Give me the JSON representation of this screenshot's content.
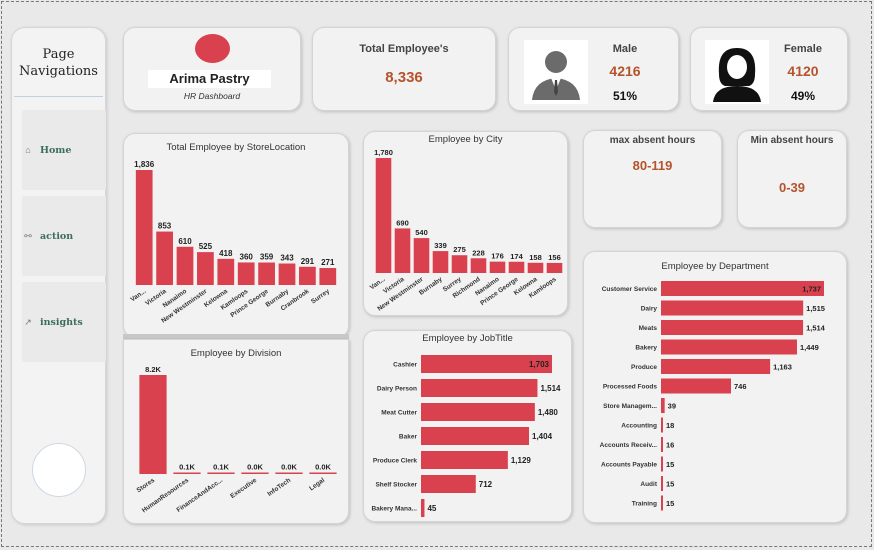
{
  "nav": {
    "title": "Page Navigations",
    "items": [
      {
        "label": "Home",
        "icon": "house-icon",
        "glyph": "⌂"
      },
      {
        "label": "action",
        "icon": "link-icon",
        "glyph": "⚯"
      },
      {
        "label": "insights",
        "icon": "chart-icon",
        "glyph": "↗"
      }
    ]
  },
  "brand": {
    "name": "Arima Pastry",
    "subtitle": "HR Dashboard",
    "logo_color": "#d9414e"
  },
  "kpis": {
    "total_label": "Total Employee's",
    "total_value": "8,336",
    "male_label": "Male",
    "male_value": "4216",
    "male_pct": "51%",
    "female_label": "Female",
    "female_value": "4120",
    "female_pct": "49%",
    "max_absent_label": "max absent hours",
    "max_absent_value": "80-119",
    "min_absent_label": "Min absent hours",
    "min_absent_value": "0-39"
  },
  "colors": {
    "bar": "#d9414e",
    "accent": "#b4542c"
  },
  "chart_data": [
    {
      "id": "store",
      "type": "bar",
      "title": "Total Employee by StoreLocation",
      "categories": [
        "Van...",
        "Victoria",
        "Nanaimo",
        "New Westminster",
        "Kelowna",
        "Kamloops",
        "Prince George",
        "Burnaby",
        "Cranbrook",
        "Surrey"
      ],
      "values": [
        1836,
        853,
        610,
        525,
        418,
        360,
        359,
        343,
        291,
        271
      ],
      "labels": [
        "1,836",
        "853",
        "610",
        "525",
        "418",
        "360",
        "359",
        "343",
        "291",
        "271"
      ]
    },
    {
      "id": "city",
      "type": "bar",
      "title": "Employee by City",
      "categories": [
        "Van...",
        "Victoria",
        "New Westminster",
        "Burnaby",
        "Surrey",
        "Richmond",
        "Nanaimo",
        "Prince George",
        "Kelowna",
        "Kamloops"
      ],
      "values": [
        1780,
        690,
        540,
        339,
        275,
        228,
        176,
        174,
        158,
        156
      ],
      "labels": [
        "1,780",
        "690",
        "540",
        "339",
        "275",
        "228",
        "176",
        "174",
        "158",
        "156"
      ]
    },
    {
      "id": "division",
      "type": "bar",
      "title": "Employee by Division",
      "categories": [
        "Stores",
        "HumanResources",
        "FinanceAndAcc...",
        "Executive",
        "InfoTech",
        "Legal"
      ],
      "values": [
        8200,
        100,
        100,
        0,
        0,
        0
      ],
      "labels": [
        "8.2K",
        "0.1K",
        "0.1K",
        "0.0K",
        "0.0K",
        "0.0K"
      ]
    },
    {
      "id": "jobtitle",
      "type": "bar",
      "orientation": "horizontal",
      "title": "Employee by JobTitle",
      "categories": [
        "Cashier",
        "Dairy Person",
        "Meat Cutter",
        "Baker",
        "Produce Clerk",
        "Shelf Stocker",
        "Bakery Mana..."
      ],
      "values": [
        1703,
        1514,
        1480,
        1404,
        1129,
        712,
        45
      ],
      "labels": [
        "1,703",
        "1,514",
        "1,480",
        "1,404",
        "1,129",
        "712",
        "45"
      ]
    },
    {
      "id": "department",
      "type": "bar",
      "orientation": "horizontal",
      "title": "Employee by Department",
      "categories": [
        "Customer Service",
        "Dairy",
        "Meats",
        "Bakery",
        "Produce",
        "Processed Foods",
        "Store Managem...",
        "Accounting",
        "Accounts Receiv...",
        "Accounts Payable",
        "Audit",
        "Training"
      ],
      "values": [
        1737,
        1515,
        1514,
        1449,
        1163,
        746,
        39,
        18,
        16,
        15,
        15,
        15
      ],
      "labels": [
        "1,737",
        "1,515",
        "1,514",
        "1,449",
        "1,163",
        "746",
        "39",
        "18",
        "16",
        "15",
        "15",
        "15"
      ]
    }
  ]
}
